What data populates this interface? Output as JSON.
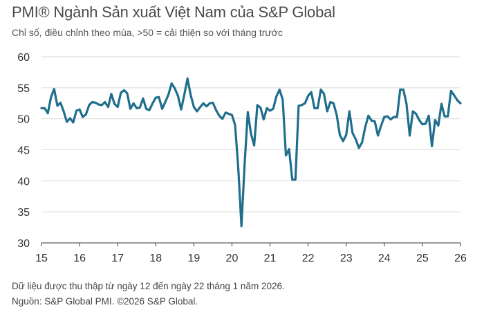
{
  "header": {
    "title": "PMI® Ngành Sản xuất Việt Nam của S&P Global",
    "subtitle": "Chỉ số, điều chỉnh theo mùa, >50 = cải thiện so với tháng trước"
  },
  "footer": {
    "note": "Dữ liệu được thu thập từ ngày 12 đến ngày 22 tháng 1 năm 2026.",
    "source": "Nguồn: S&P Global PMI. ©2026 S&P Global."
  },
  "chart_data": {
    "type": "line",
    "title": "PMI® Ngành Sản xuất Việt Nam của S&P Global",
    "subtitle": "Chỉ số, điều chỉnh theo mùa, >50 = cải thiện so với tháng trước",
    "ylim": [
      30,
      60
    ],
    "yticks": [
      30,
      35,
      40,
      45,
      50,
      55,
      60
    ],
    "xlim": [
      2015,
      2026
    ],
    "xticks": [
      2015,
      2016,
      2017,
      2018,
      2019,
      2020,
      2021,
      2022,
      2023,
      2024,
      2025,
      2026
    ],
    "xtick_labels": [
      "15",
      "16",
      "17",
      "18",
      "19",
      "20",
      "21",
      "22",
      "23",
      "24",
      "25",
      "26"
    ],
    "grid": "horizontal",
    "line_color": "#1f6e8c",
    "series": [
      {
        "x": [
          2015.0,
          2015.083,
          2015.167,
          2015.25,
          2015.333,
          2015.417,
          2015.5,
          2015.583,
          2015.667,
          2015.75,
          2015.833,
          2015.917,
          2016.0,
          2016.083,
          2016.167,
          2016.25,
          2016.333,
          2016.417,
          2016.5,
          2016.583,
          2016.667,
          2016.75,
          2016.833,
          2016.917,
          2017.0,
          2017.083,
          2017.167,
          2017.25,
          2017.333,
          2017.417,
          2017.5,
          2017.583,
          2017.667,
          2017.75,
          2017.833,
          2017.917,
          2018.0,
          2018.083,
          2018.167,
          2018.25,
          2018.333,
          2018.417,
          2018.5,
          2018.583,
          2018.667,
          2018.75,
          2018.833,
          2018.917,
          2019.0,
          2019.083,
          2019.167,
          2019.25,
          2019.333,
          2019.417,
          2019.5,
          2019.583,
          2019.667,
          2019.75,
          2019.833,
          2019.917,
          2020.0,
          2020.083,
          2020.167,
          2020.25,
          2020.333,
          2020.417,
          2020.5,
          2020.583,
          2020.667,
          2020.75,
          2020.833,
          2020.917,
          2021.0,
          2021.083,
          2021.167,
          2021.25,
          2021.333,
          2021.417,
          2021.5,
          2021.583,
          2021.667,
          2021.75,
          2021.833,
          2021.917,
          2022.0,
          2022.083,
          2022.167,
          2022.25,
          2022.333,
          2022.417,
          2022.5,
          2022.583,
          2022.667,
          2022.75,
          2022.833,
          2022.917,
          2023.0,
          2023.083,
          2023.167,
          2023.25,
          2023.333,
          2023.417,
          2023.5,
          2023.583,
          2023.667,
          2023.75,
          2023.833,
          2023.917,
          2024.0,
          2024.083,
          2024.167,
          2024.25,
          2024.333,
          2024.417,
          2024.5,
          2024.583,
          2024.667,
          2024.75,
          2024.833,
          2024.917,
          2025.0,
          2025.083,
          2025.167,
          2025.25,
          2025.333,
          2025.417,
          2025.5,
          2025.583,
          2025.667,
          2025.75,
          2025.833,
          2025.917,
          2026.0
        ],
        "values": [
          51.7,
          51.7,
          50.9,
          53.5,
          54.8,
          52.1,
          52.6,
          51.2,
          49.5,
          50.1,
          49.4,
          51.3,
          51.5,
          50.3,
          50.7,
          52.2,
          52.7,
          52.6,
          52.3,
          52.2,
          52.7,
          51.9,
          54.0,
          52.4,
          51.9,
          54.2,
          54.6,
          54.1,
          51.6,
          52.5,
          51.7,
          51.8,
          53.3,
          51.6,
          51.4,
          52.5,
          53.4,
          53.5,
          51.6,
          52.7,
          53.9,
          55.7,
          54.9,
          53.7,
          51.5,
          53.9,
          56.5,
          53.8,
          51.9,
          51.2,
          51.9,
          52.5,
          52.0,
          52.5,
          52.6,
          51.4,
          50.5,
          50.0,
          51.0,
          50.8,
          50.6,
          49.0,
          41.9,
          32.7,
          42.7,
          51.1,
          47.6,
          45.7,
          52.2,
          51.8,
          49.9,
          51.7,
          51.3,
          51.6,
          53.6,
          54.7,
          53.1,
          44.1,
          45.1,
          40.2,
          40.2,
          52.1,
          52.2,
          52.5,
          53.7,
          54.3,
          51.7,
          51.7,
          54.7,
          54.0,
          51.2,
          52.7,
          52.5,
          50.6,
          47.4,
          46.4,
          47.4,
          51.2,
          47.7,
          46.7,
          45.3,
          46.2,
          48.7,
          50.5,
          49.7,
          49.6,
          47.3,
          48.9,
          50.3,
          50.4,
          49.9,
          50.3,
          50.3,
          54.7,
          54.7,
          52.4,
          47.3,
          51.2,
          50.8,
          49.8,
          49.1,
          49.2,
          50.5,
          45.6,
          49.8,
          48.9,
          52.4,
          50.4,
          50.4,
          54.5,
          53.8,
          53.0,
          52.5
        ]
      }
    ]
  }
}
